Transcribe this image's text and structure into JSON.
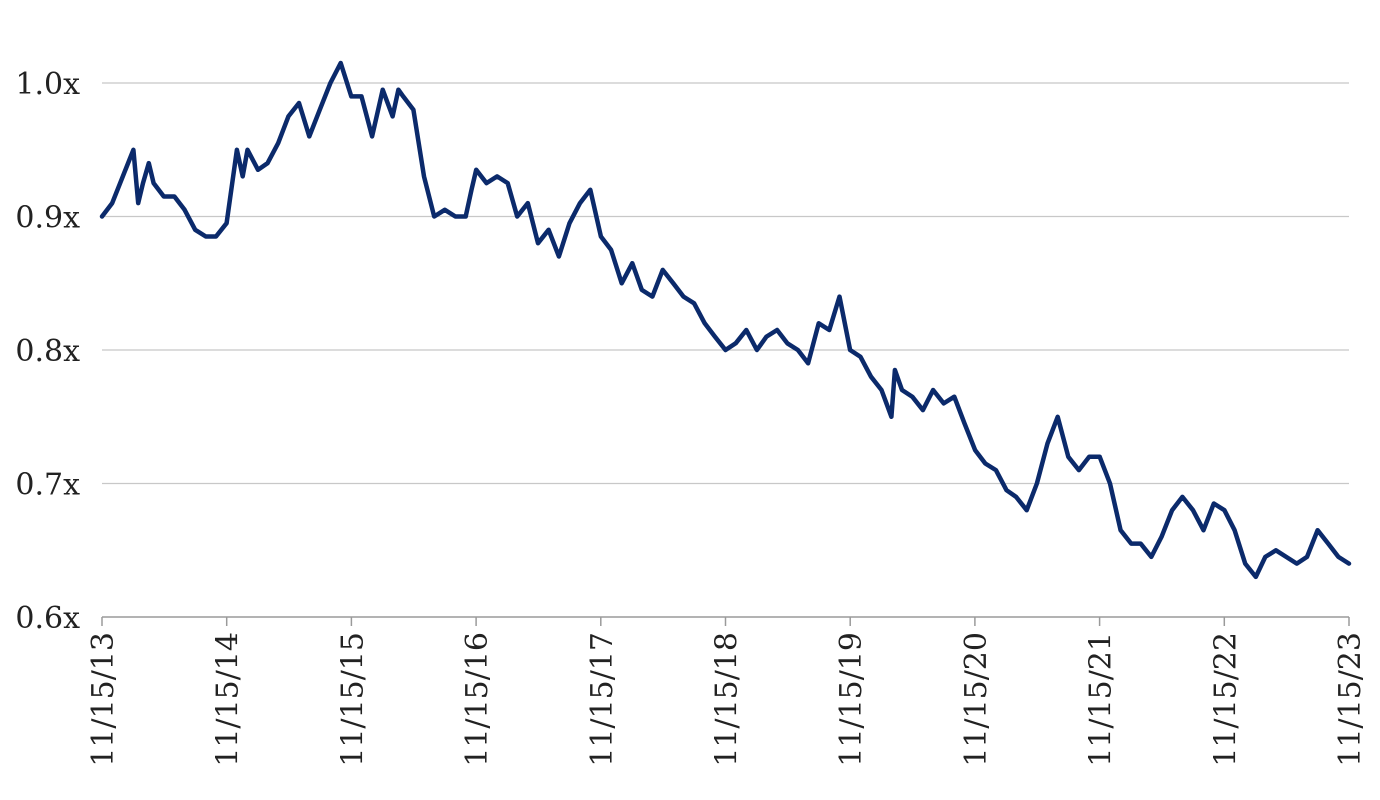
{
  "chart_data": {
    "type": "line",
    "title": "",
    "xlabel": "",
    "ylabel": "",
    "grid": true,
    "legend": "none",
    "line_color": "#0b2a6b",
    "ylim": [
      0.6,
      1.0
    ],
    "y_ticks": [
      "0.6x",
      "0.7x",
      "0.8x",
      "0.9x",
      "1.0x"
    ],
    "x_ticks": [
      "11/15/13",
      "11/15/14",
      "11/15/15",
      "11/15/16",
      "11/15/17",
      "11/15/18",
      "11/15/19",
      "11/15/20",
      "11/15/21",
      "11/15/22",
      "11/15/23"
    ],
    "series": [
      {
        "x": [
          "2013-11-15",
          "2013-12-15",
          "2014-01-15",
          "2014-02-15",
          "2014-03-01",
          "2014-03-15",
          "2014-04-01",
          "2014-04-15",
          "2014-05-15",
          "2014-06-15",
          "2014-07-15",
          "2014-08-15",
          "2014-09-15",
          "2014-10-15",
          "2014-11-15",
          "2014-12-15",
          "2015-01-01",
          "2015-01-15",
          "2015-02-15",
          "2015-03-15",
          "2015-04-15",
          "2015-05-15",
          "2015-06-15",
          "2015-07-15",
          "2015-08-15",
          "2015-09-15",
          "2015-10-15",
          "2015-11-15",
          "2015-12-15",
          "2016-01-15",
          "2016-02-15",
          "2016-03-15",
          "2016-04-01",
          "2016-04-15",
          "2016-05-15",
          "2016-06-15",
          "2016-07-15",
          "2016-08-15",
          "2016-09-15",
          "2016-10-15",
          "2016-11-01",
          "2016-11-15",
          "2016-12-15",
          "2017-01-15",
          "2017-02-15",
          "2017-03-15",
          "2017-04-15",
          "2017-05-15",
          "2017-06-15",
          "2017-07-15",
          "2017-08-15",
          "2017-09-15",
          "2017-10-15",
          "2017-11-15",
          "2017-12-15",
          "2018-01-15",
          "2018-02-15",
          "2018-03-15",
          "2018-04-15",
          "2018-05-15",
          "2018-06-15",
          "2018-07-15",
          "2018-08-15",
          "2018-09-15",
          "2018-10-15",
          "2018-11-15",
          "2018-12-15",
          "2019-01-15",
          "2019-02-15",
          "2019-03-15",
          "2019-04-15",
          "2019-05-15",
          "2019-06-15",
          "2019-07-15",
          "2019-08-15",
          "2019-09-15",
          "2019-10-15",
          "2019-11-15",
          "2019-12-15",
          "2020-01-15",
          "2020-02-15",
          "2020-03-15",
          "2020-03-25",
          "2020-04-15",
          "2020-05-15",
          "2020-06-15",
          "2020-07-15",
          "2020-08-15",
          "2020-09-15",
          "2020-10-15",
          "2020-11-15",
          "2020-12-15",
          "2021-01-15",
          "2021-02-15",
          "2021-03-15",
          "2021-04-15",
          "2021-05-15",
          "2021-06-15",
          "2021-07-15",
          "2021-08-15",
          "2021-09-15",
          "2021-10-15",
          "2021-11-15",
          "2021-12-15",
          "2022-01-15",
          "2022-02-15",
          "2022-03-15",
          "2022-04-15",
          "2022-05-15",
          "2022-06-15",
          "2022-07-15",
          "2022-08-15",
          "2022-09-15",
          "2022-10-15",
          "2022-11-15",
          "2022-12-15",
          "2023-01-15",
          "2023-02-15",
          "2023-03-15",
          "2023-04-15",
          "2023-05-15",
          "2023-06-15",
          "2023-07-15",
          "2023-08-15",
          "2023-09-15",
          "2023-10-15",
          "2023-11-15"
        ],
        "y": [
          0.9,
          0.91,
          0.93,
          0.95,
          0.91,
          0.925,
          0.94,
          0.925,
          0.915,
          0.915,
          0.905,
          0.89,
          0.885,
          0.885,
          0.895,
          0.95,
          0.93,
          0.95,
          0.935,
          0.94,
          0.955,
          0.975,
          0.985,
          0.96,
          0.98,
          1.0,
          1.015,
          0.99,
          0.99,
          0.96,
          0.995,
          0.975,
          0.995,
          0.99,
          0.98,
          0.93,
          0.9,
          0.905,
          0.9,
          0.9,
          0.92,
          0.935,
          0.925,
          0.93,
          0.925,
          0.9,
          0.91,
          0.88,
          0.89,
          0.87,
          0.895,
          0.91,
          0.92,
          0.885,
          0.875,
          0.85,
          0.865,
          0.845,
          0.84,
          0.86,
          0.85,
          0.84,
          0.835,
          0.82,
          0.81,
          0.8,
          0.805,
          0.815,
          0.8,
          0.81,
          0.815,
          0.805,
          0.8,
          0.79,
          0.82,
          0.815,
          0.84,
          0.8,
          0.795,
          0.78,
          0.77,
          0.75,
          0.785,
          0.77,
          0.765,
          0.755,
          0.77,
          0.76,
          0.765,
          0.745,
          0.725,
          0.715,
          0.71,
          0.695,
          0.69,
          0.68,
          0.7,
          0.73,
          0.75,
          0.72,
          0.71,
          0.72,
          0.72,
          0.7,
          0.665,
          0.655,
          0.655,
          0.645,
          0.66,
          0.68,
          0.69,
          0.68,
          0.665,
          0.685,
          0.68,
          0.665,
          0.64,
          0.63,
          0.645,
          0.65,
          0.645,
          0.64,
          0.645,
          0.665,
          0.655,
          0.645,
          0.64
        ]
      }
    ]
  }
}
